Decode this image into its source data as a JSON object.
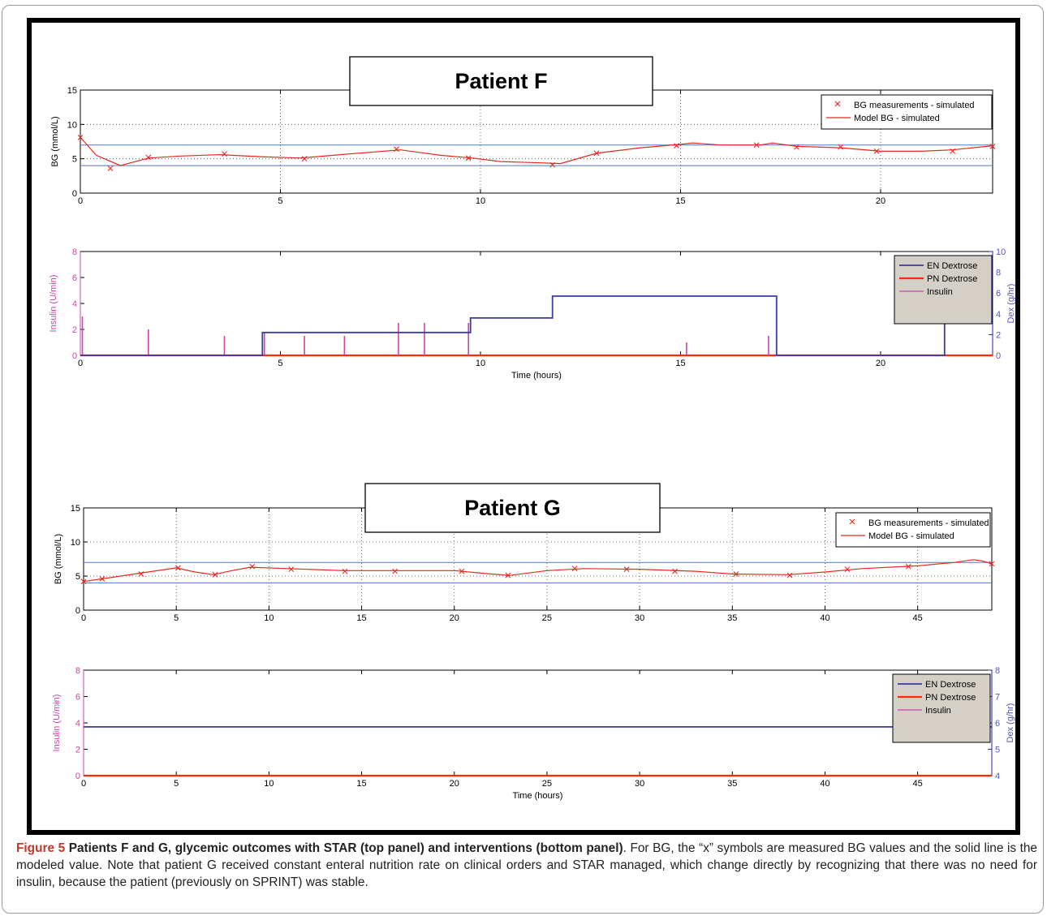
{
  "caption": {
    "figure_label": "Figure 5",
    "title": "Patients F and G, glycemic outcomes with STAR (top panel) and interventions (bottom panel)",
    "body": ". For BG, the “x” symbols are measured BG values and the solid line is the modeled value. Note that patient G received constant enteral nutrition rate on clinical orders and STAR managed, which change directly by recognizing that there was no need for insulin, because the patient (previously on SPRINT) was stable."
  },
  "colors": {
    "bg_model": "#e8281e",
    "bg_meas": "#e8281e",
    "band": "#5577cc",
    "en": "#3a3aa8",
    "pn": "#ff2a00",
    "insulin": "#cc44aa",
    "legend_fill": "#d4d0c8"
  },
  "chart_data": [
    {
      "id": "F_bg",
      "type": "line",
      "patient_label": "Patient F",
      "ylabel": "BG (mmol/L)",
      "xlim": [
        0,
        22.8
      ],
      "ylim": [
        0,
        15
      ],
      "xticks": [
        0,
        5,
        10,
        15,
        20
      ],
      "yticks": [
        0,
        5,
        10,
        15
      ],
      "grid": true,
      "legend": [
        "BG measurements - simulated",
        "Model BG - simulated"
      ],
      "legend_position": "top-right",
      "band": [
        4,
        7
      ],
      "model_x": [
        0,
        0.4,
        1.0,
        1.7,
        2.5,
        3.5,
        4.5,
        5.5,
        6.5,
        8.0,
        9.0,
        9.8,
        10.5,
        11.5,
        12.0,
        12.9,
        14.0,
        15.0,
        15.3,
        16.0,
        17.0,
        17.3,
        17.9,
        19.0,
        20.0,
        21.0,
        21.8,
        22.8
      ],
      "model_y": [
        8.1,
        5.5,
        4.0,
        5.1,
        5.4,
        5.6,
        5.3,
        5.1,
        5.6,
        6.3,
        5.5,
        5.1,
        4.6,
        4.4,
        4.3,
        5.8,
        6.6,
        7.1,
        7.3,
        7.0,
        7.0,
        7.3,
        6.8,
        6.6,
        6.1,
        6.1,
        6.3,
        6.9
      ],
      "meas_x": [
        0,
        0.75,
        1.7,
        3.6,
        5.6,
        7.9,
        9.7,
        11.8,
        12.9,
        14.9,
        16.9,
        17.9,
        19.0,
        19.9,
        21.8,
        22.8
      ],
      "meas_y": [
        8.1,
        3.6,
        5.2,
        5.7,
        5.0,
        6.4,
        5.1,
        4.1,
        5.8,
        6.9,
        7.0,
        6.7,
        6.7,
        6.1,
        6.1,
        6.8
      ]
    },
    {
      "id": "F_int",
      "type": "line",
      "xlabel": "Time (hours)",
      "ylabel_left": "Insulin (U/min)",
      "ylabel_right": "Dex (g/hr)",
      "xlim": [
        0,
        22.8
      ],
      "ylim_left": [
        0,
        8
      ],
      "ylim_right": [
        0,
        10
      ],
      "xticks": [
        0,
        5,
        10,
        15,
        20
      ],
      "yticks_left": [
        0,
        2,
        4,
        6,
        8
      ],
      "yticks_right": [
        0,
        2,
        4,
        6,
        8,
        10
      ],
      "legend": [
        "EN Dextrose",
        "PN Dextrose",
        "Insulin"
      ],
      "legend_position": "top-right",
      "en_x": [
        0,
        4.55,
        4.55,
        9.75,
        9.75,
        11.8,
        11.8,
        17.4,
        17.4,
        21.6,
        21.6,
        22.8
      ],
      "en_y": [
        0,
        0,
        2.2,
        2.2,
        3.6,
        3.6,
        5.7,
        5.7,
        0,
        0,
        5.3,
        5.3
      ],
      "pn_x": [
        0,
        22.8
      ],
      "pn_y": [
        0,
        0
      ],
      "insulin_x": [
        0.05,
        1.7,
        3.6,
        4.6,
        5.6,
        6.6,
        7.95,
        8.6,
        9.7,
        15.15,
        17.2
      ],
      "insulin_y": [
        3.0,
        2.0,
        1.5,
        1.8,
        1.5,
        1.5,
        2.5,
        2.5,
        2.5,
        1.0,
        1.5
      ]
    },
    {
      "id": "G_bg",
      "type": "line",
      "patient_label": "Patient G",
      "ylabel": "BG (mmol/L)",
      "xlim": [
        0,
        49
      ],
      "ylim": [
        0,
        15
      ],
      "xticks": [
        0,
        5,
        10,
        15,
        20,
        25,
        30,
        35,
        40,
        45
      ],
      "yticks": [
        0,
        5,
        10,
        15
      ],
      "grid": true,
      "legend": [
        "BG measurements - simulated",
        "Model BG - simulated"
      ],
      "legend_position": "top-right",
      "band": [
        4,
        7
      ],
      "model_x": [
        0,
        1,
        3,
        5,
        6,
        7,
        8,
        9,
        11,
        14,
        17,
        20,
        22,
        23,
        25,
        27,
        30,
        33,
        35,
        38,
        40,
        42,
        45,
        47,
        48,
        48.5,
        49
      ],
      "model_y": [
        4.2,
        4.6,
        5.4,
        6.2,
        5.6,
        5.2,
        5.8,
        6.3,
        6.1,
        5.8,
        5.8,
        5.8,
        5.3,
        5.1,
        5.8,
        6.1,
        6.0,
        5.7,
        5.3,
        5.2,
        5.6,
        6.1,
        6.5,
        7.0,
        7.4,
        7.2,
        6.8
      ],
      "meas_x": [
        0,
        1,
        3.1,
        5.1,
        7.1,
        9.1,
        11.2,
        14.1,
        16.8,
        20.4,
        22.9,
        26.5,
        29.3,
        31.9,
        35.2,
        38.1,
        41.2,
        44.5,
        49
      ],
      "meas_y": [
        4.2,
        4.6,
        5.3,
        6.2,
        5.2,
        6.4,
        6.0,
        5.7,
        5.7,
        5.7,
        5.1,
        6.1,
        6.0,
        5.7,
        5.3,
        5.1,
        6.0,
        6.4,
        6.8
      ]
    },
    {
      "id": "G_int",
      "type": "line",
      "xlabel": "Time (hours)",
      "ylabel_left": "Insulin (U/min)",
      "ylabel_right": "Dex (g/hr)",
      "xlim": [
        0,
        49
      ],
      "ylim_left": [
        0,
        8
      ],
      "ylim_right": [
        4,
        8
      ],
      "xticks": [
        0,
        5,
        10,
        15,
        20,
        25,
        30,
        35,
        40,
        45
      ],
      "yticks_left": [
        0,
        2,
        4,
        6,
        8
      ],
      "yticks_right": [
        4,
        5,
        6,
        7,
        8
      ],
      "legend": [
        "EN Dextrose",
        "PN Dextrose",
        "Insulin"
      ],
      "legend_position": "top-right",
      "en_x": [
        0,
        49
      ],
      "en_y": [
        5.85,
        5.85
      ],
      "pn_x": [
        0,
        49
      ],
      "pn_y": [
        0,
        0
      ],
      "insulin_x": [],
      "insulin_y": []
    }
  ]
}
